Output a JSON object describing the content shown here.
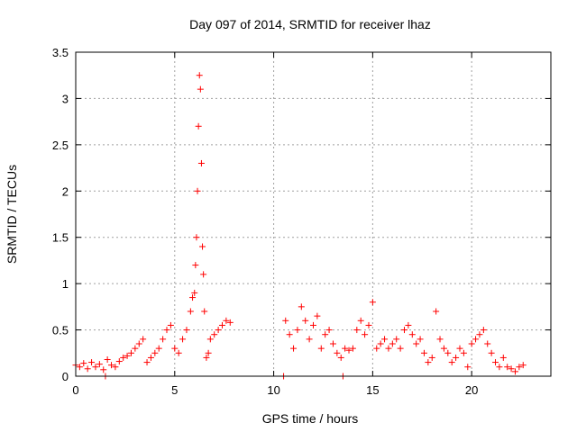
{
  "chart_data": {
    "type": "scatter",
    "title": "Day 097 of 2014, SRMTID for receiver lhaz",
    "xlabel": "GPS time / hours",
    "ylabel": "SRMTID / TECUs",
    "xlim": [
      0,
      24
    ],
    "ylim": [
      0,
      3.5
    ],
    "xticks": [
      0,
      5,
      10,
      15,
      20
    ],
    "xtick_labels": [
      "0",
      "5",
      "10",
      "15",
      "20"
    ],
    "yticks": [
      0,
      0.5,
      1,
      1.5,
      2,
      2.5,
      3,
      3.5
    ],
    "ytick_labels": [
      "0",
      "0.5",
      "1",
      "1.5",
      "2",
      "2.5",
      "3",
      "3.5"
    ],
    "grid": true,
    "marker": "+",
    "color": "#ff0000",
    "series": [
      {
        "name": "SRMTID",
        "x": [
          0.0,
          0.2,
          0.4,
          0.6,
          0.8,
          1.0,
          1.2,
          1.4,
          1.6,
          1.8,
          2.0,
          2.2,
          2.4,
          2.6,
          2.8,
          3.0,
          3.2,
          3.4,
          3.6,
          3.8,
          4.0,
          4.2,
          4.4,
          4.6,
          4.8,
          5.0,
          5.2,
          5.4,
          5.6,
          5.8,
          5.9,
          6.0,
          6.05,
          6.1,
          6.15,
          6.2,
          6.25,
          6.3,
          6.35,
          6.4,
          6.45,
          6.5,
          6.6,
          6.7,
          6.8,
          7.0,
          7.2,
          7.4,
          7.6,
          7.8,
          10.6,
          10.8,
          11.0,
          11.2,
          11.4,
          11.6,
          11.8,
          12.0,
          12.2,
          12.4,
          12.6,
          12.8,
          13.0,
          13.2,
          13.4,
          13.6,
          13.8,
          14.0,
          14.2,
          14.4,
          14.6,
          14.8,
          15.0,
          15.2,
          15.4,
          15.6,
          15.8,
          16.0,
          16.2,
          16.4,
          16.6,
          16.8,
          17.0,
          17.2,
          17.4,
          17.6,
          17.8,
          18.0,
          18.2,
          18.4,
          18.6,
          18.8,
          19.0,
          19.2,
          19.4,
          19.6,
          19.8,
          20.0,
          20.2,
          20.4,
          20.6,
          20.8,
          21.0,
          21.2,
          21.4,
          21.6,
          21.8,
          22.0,
          22.2,
          22.4,
          22.6,
          1.5,
          10.5,
          13.5
        ],
        "y": [
          0.12,
          0.1,
          0.14,
          0.08,
          0.15,
          0.1,
          0.13,
          0.07,
          0.18,
          0.12,
          0.1,
          0.16,
          0.2,
          0.22,
          0.25,
          0.3,
          0.35,
          0.4,
          0.15,
          0.2,
          0.25,
          0.3,
          0.4,
          0.5,
          0.55,
          0.3,
          0.25,
          0.4,
          0.5,
          0.7,
          0.85,
          0.9,
          1.2,
          1.5,
          2.0,
          2.7,
          3.25,
          3.1,
          2.3,
          1.4,
          1.1,
          0.7,
          0.2,
          0.25,
          0.4,
          0.45,
          0.5,
          0.55,
          0.6,
          0.58,
          0.6,
          0.45,
          0.3,
          0.5,
          0.75,
          0.6,
          0.4,
          0.55,
          0.65,
          0.3,
          0.45,
          0.5,
          0.35,
          0.25,
          0.2,
          0.3,
          0.28,
          0.3,
          0.5,
          0.6,
          0.45,
          0.55,
          0.8,
          0.3,
          0.35,
          0.4,
          0.3,
          0.35,
          0.4,
          0.3,
          0.5,
          0.55,
          0.45,
          0.35,
          0.4,
          0.25,
          0.15,
          0.2,
          0.7,
          0.4,
          0.3,
          0.25,
          0.15,
          0.2,
          0.3,
          0.25,
          0.1,
          0.35,
          0.4,
          0.45,
          0.5,
          0.35,
          0.25,
          0.15,
          0.1,
          0.2,
          0.1,
          0.08,
          0.05,
          0.1,
          0.12,
          0.0,
          0.0,
          0.0
        ]
      }
    ]
  }
}
